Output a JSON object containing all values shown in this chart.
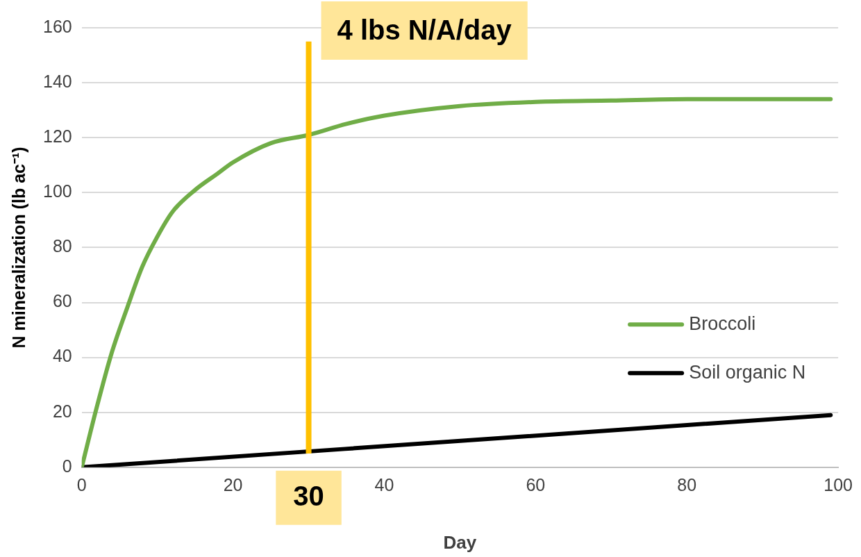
{
  "chart_data": {
    "type": "line",
    "xlabel": "Day",
    "ylabel": "N mineralization (lb ac⁻¹)",
    "xlim": [
      0,
      100
    ],
    "xticks": [
      0,
      20,
      40,
      60,
      80,
      100
    ],
    "ylim": [
      0,
      160
    ],
    "yticks": [
      0,
      20,
      40,
      60,
      80,
      100,
      120,
      140,
      160
    ],
    "grid": "y",
    "legend": "right",
    "marker": "none",
    "line_style": "solid",
    "series": [
      {
        "name": "Broccoli",
        "color": "#70ad47",
        "x": [
          0,
          2,
          4,
          6,
          8,
          10,
          12,
          15,
          18,
          20,
          25,
          30,
          35,
          40,
          50,
          60,
          70,
          80,
          90,
          99
        ],
        "values": [
          0,
          22,
          42,
          58,
          73,
          84,
          93,
          101,
          107,
          111,
          118,
          121,
          125,
          128,
          131.5,
          133,
          133.5,
          134,
          134,
          134
        ]
      },
      {
        "name": "Soil organic N",
        "color": "#000000",
        "x": [
          0,
          99
        ],
        "values": [
          0,
          19
        ]
      }
    ],
    "ref_lines": [
      {
        "axis": "x",
        "value": 30,
        "label": "30",
        "color": "#ffc000"
      }
    ],
    "annotations": [
      "4 lbs N/A/day"
    ]
  }
}
